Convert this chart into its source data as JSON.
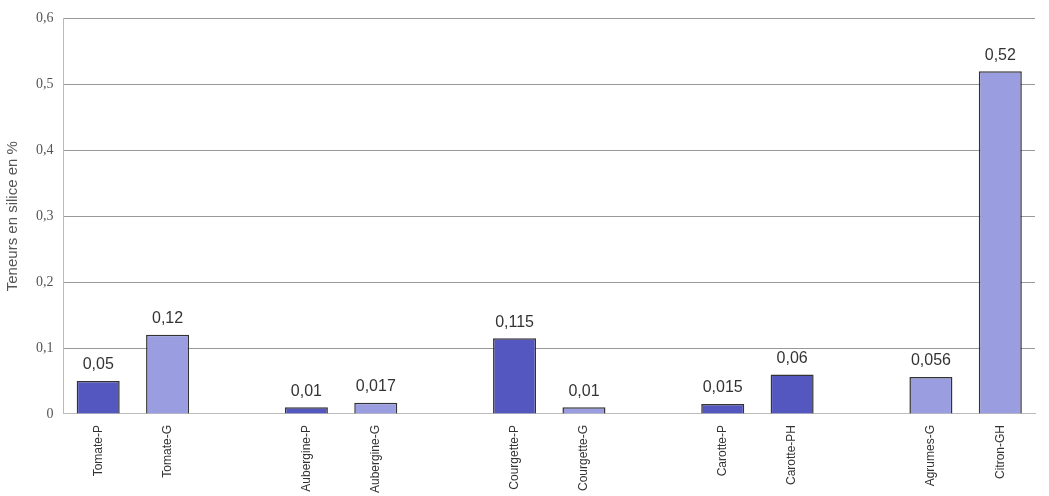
{
  "chart_data": {
    "type": "bar",
    "ylabel": "Teneurs en silice en %",
    "categories": [
      "Tomate-P",
      "Tomate-G",
      null,
      "Aubergine-P",
      "Aubergine-G",
      null,
      "Courgette-P",
      "Courgette-G",
      null,
      "Carotte-P",
      "Carotte-PH",
      null,
      "Agrumes-G",
      "Citron-GH"
    ],
    "values": [
      0.05,
      0.12,
      null,
      0.01,
      0.017,
      null,
      0.115,
      0.01,
      null,
      0.015,
      0.06,
      null,
      0.056,
      0.52
    ],
    "colors": [
      "#5557c0",
      "#9a9ee0",
      null,
      "#5557c0",
      "#9a9ee0",
      null,
      "#5557c0",
      "#9a9ee0",
      null,
      "#5557c0",
      "#5557c0",
      null,
      "#9a9ee0",
      "#9a9ee0"
    ],
    "value_labels": [
      "0,05",
      "0,12",
      null,
      "0,01",
      "0,017",
      null,
      "0,115",
      "0,01",
      null,
      "0,015",
      "0,06",
      null,
      "0,056",
      "0,52"
    ],
    "ylim": [
      0,
      0.6
    ],
    "yticks": [
      0,
      {
        "value": 0.1,
        "label": "0,1"
      },
      {
        "value": 0.2,
        "label": "0,2"
      },
      {
        "value": 0.3,
        "label": "0,3"
      },
      {
        "value": 0.4,
        "label": "0,4"
      },
      {
        "value": 0.5,
        "label": "0,5"
      },
      {
        "value": 0.6,
        "label": "0,6"
      }
    ],
    "grid": "y",
    "legend": false
  }
}
